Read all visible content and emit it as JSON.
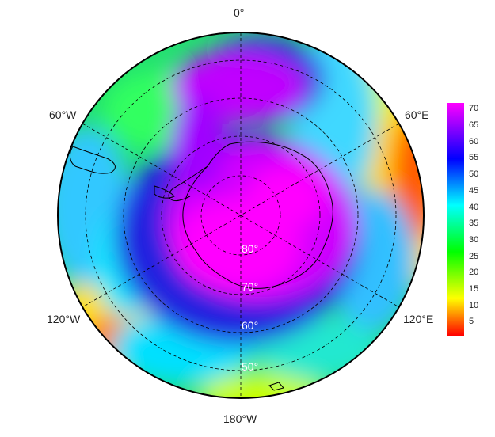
{
  "map": {
    "projection": "south polar stereographic",
    "longitude_labels": {
      "top": "0°",
      "upper_left": "60°W",
      "upper_right": "60°E",
      "lower_left": "120°W",
      "lower_right": "120°E",
      "bottom": "180°W"
    },
    "latitude_labels": [
      "80°",
      "70°",
      "60°",
      "50°"
    ],
    "graticule_style": "dashed",
    "coastlines": "Antarctica, South America tip, Antarctic Peninsula"
  },
  "colorbar": {
    "ticks": [
      "70",
      "65",
      "60",
      "55",
      "50",
      "45",
      "40",
      "35",
      "30",
      "25",
      "20",
      "15",
      "10",
      "5"
    ],
    "range": [
      1,
      72
    ],
    "palette": [
      "#ff0000",
      "#ffff00",
      "#00ff00",
      "#00ffff",
      "#0000ff",
      "#ff00ff"
    ]
  }
}
